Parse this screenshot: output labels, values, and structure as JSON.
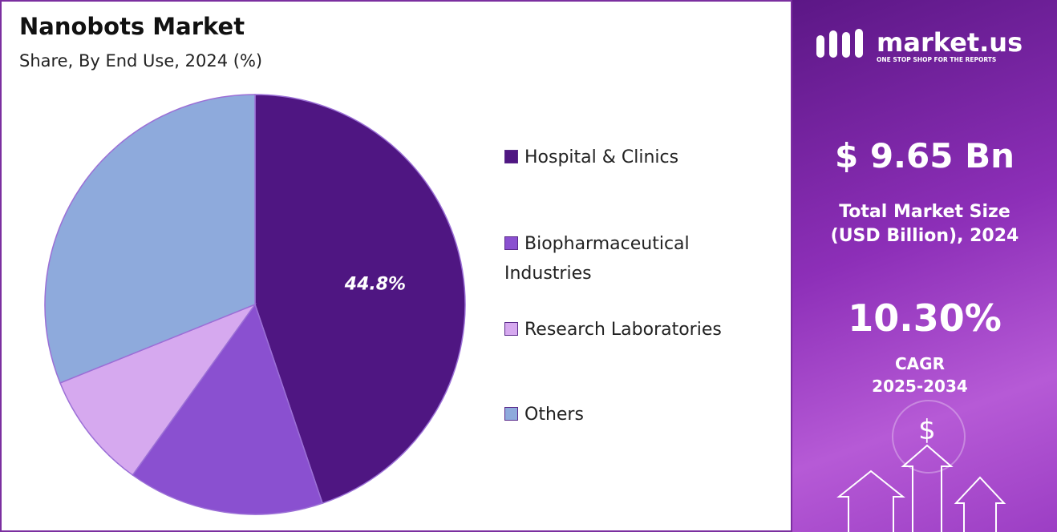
{
  "chart_data": {
    "type": "pie",
    "title": "Nanobots Market",
    "subtitle": "Share, By End Use, 2024 (%)",
    "categories": [
      "Hospital & Clinics",
      "Biopharmaceutical Industries",
      "Research Laboratories",
      "Others"
    ],
    "values": [
      44.8,
      15.1,
      9.0,
      31.1
    ],
    "value_labels": [
      "44.8%",
      null,
      null,
      null
    ],
    "colors": [
      "#4f1682",
      "#8a50d0",
      "#d6a9ef",
      "#8eaadc"
    ]
  },
  "side_panel": {
    "logo": "market.us",
    "tagline": "ONE STOP SHOP FOR THE REPORTS",
    "market_size": "$ 9.65 Bn",
    "market_size_label": [
      "Total Market Size",
      "(USD Billion), 2024"
    ],
    "cagr": "10.30%",
    "cagr_label": [
      "CAGR",
      "2025-2034"
    ],
    "icon_symbol": "$"
  }
}
